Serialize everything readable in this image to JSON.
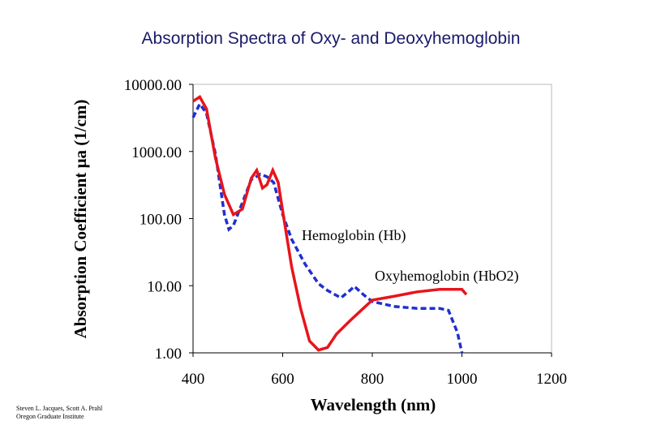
{
  "chart_data": {
    "type": "line",
    "title": "Absorption Spectra of Oxy- and Deoxyhemoglobin",
    "xlabel": "Wavelength (nm)",
    "ylabel": "Absorption Coefficient μa  (1/cm)",
    "credit": [
      "Steven L. Jacques, Scott A. Prahl",
      "Oregon Graduate Institute"
    ],
    "xlim": [
      400,
      1200
    ],
    "xticks": [
      400,
      600,
      800,
      1000,
      1200
    ],
    "ylim": [
      1,
      10000
    ],
    "ylog": true,
    "yticks": [
      {
        "value": 1,
        "label": "1.00"
      },
      {
        "value": 10,
        "label": "10.00"
      },
      {
        "value": 100,
        "label": "100.00"
      },
      {
        "value": 1000,
        "label": "1000.00"
      },
      {
        "value": 10000,
        "label": "10000.00"
      }
    ],
    "series": [
      {
        "name": "Hemoglobin (Hb)",
        "color": "#1f2fd0",
        "dashed": true,
        "x": [
          400,
          415,
          430,
          450,
          470,
          480,
          490,
          510,
          530,
          550,
          565,
          580,
          600,
          620,
          650,
          680,
          700,
          730,
          750,
          760,
          780,
          800,
          850,
          900,
          950,
          970,
          990,
          1000
        ],
        "values": [
          3200,
          5100,
          3700,
          920,
          115,
          69,
          79,
          172,
          380,
          460,
          420,
          345,
          115,
          49,
          21,
          10.7,
          8.5,
          6.6,
          8.5,
          9.8,
          7.4,
          5.8,
          4.9,
          4.6,
          4.6,
          4.3,
          2.0,
          1.0
        ]
      },
      {
        "name": "Oxyhemoglobin (HbO2)",
        "color": "#e8141c",
        "dashed": false,
        "x": [
          400,
          415,
          430,
          450,
          470,
          490,
          510,
          530,
          542,
          555,
          565,
          578,
          590,
          600,
          620,
          640,
          660,
          680,
          700,
          720,
          750,
          780,
          800,
          850,
          900,
          950,
          1000,
          1010
        ],
        "values": [
          5600,
          6500,
          4300,
          800,
          230,
          115,
          138,
          400,
          525,
          285,
          320,
          525,
          345,
          130,
          19,
          4.6,
          1.5,
          1.1,
          1.2,
          1.9,
          3.0,
          4.6,
          6.1,
          7.0,
          8.1,
          8.8,
          8.8,
          7.4
        ]
      }
    ]
  }
}
